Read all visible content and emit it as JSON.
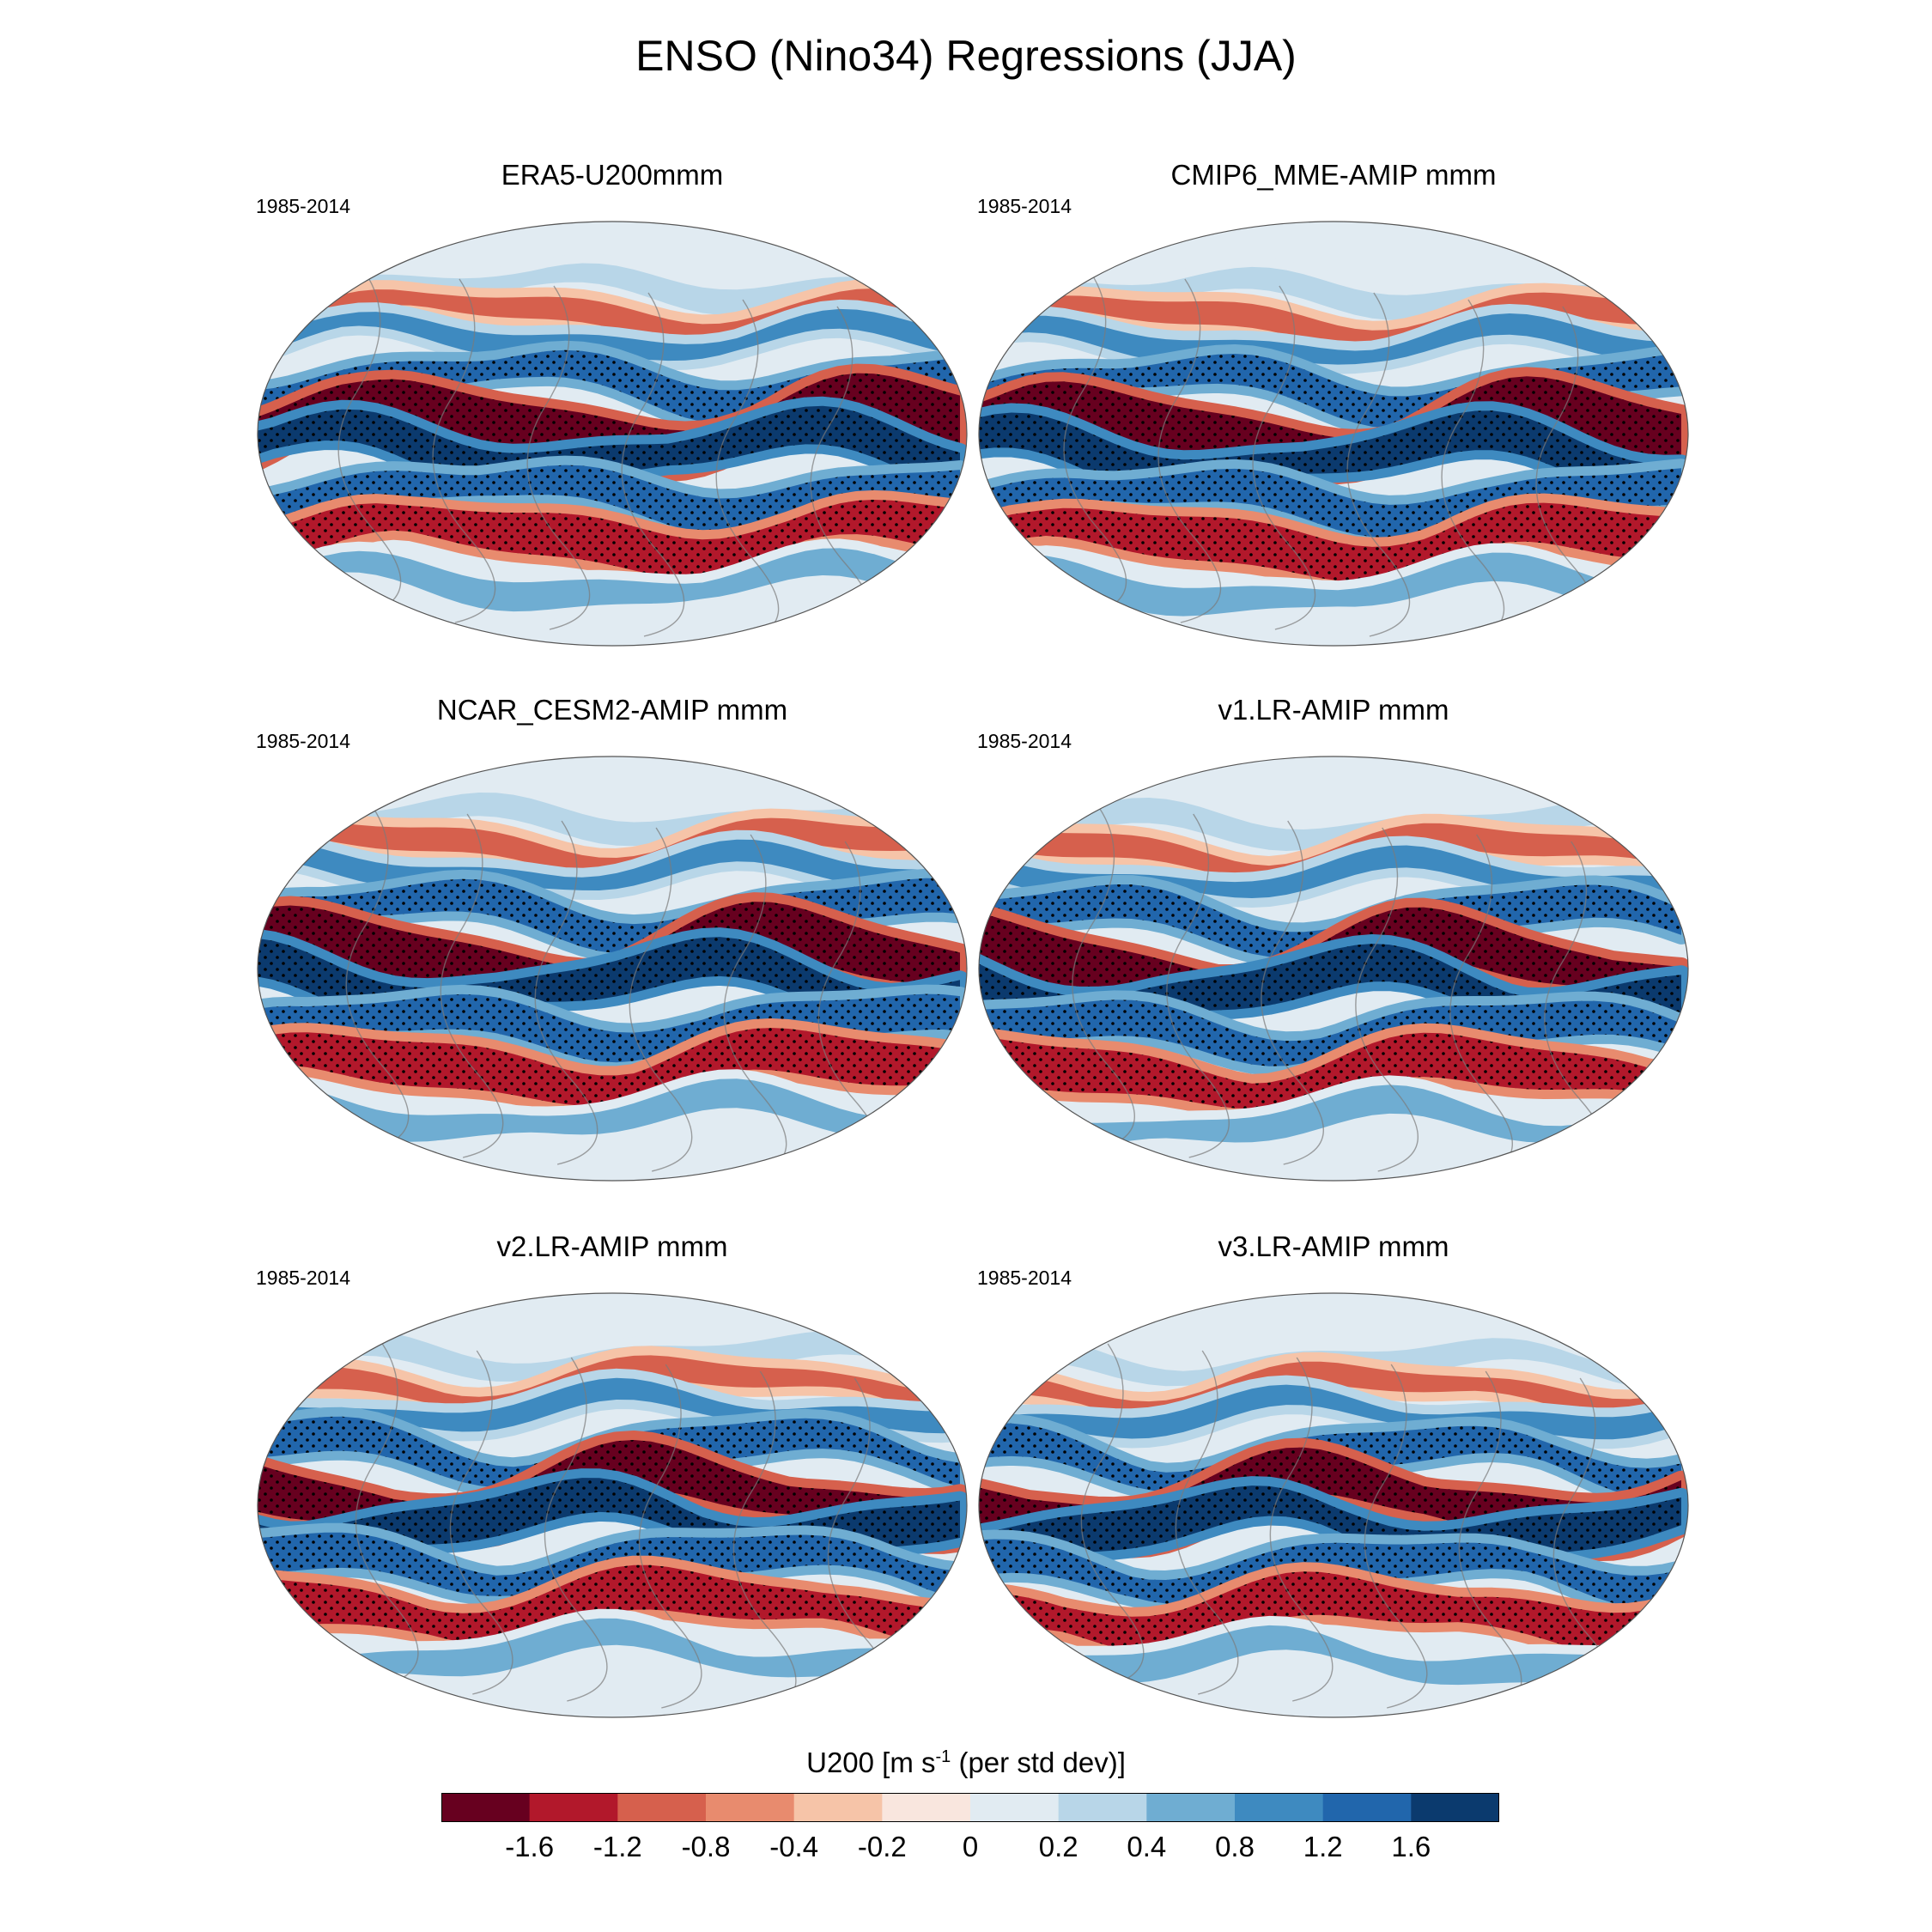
{
  "title": "ENSO (Nino34) Regressions (JJA)",
  "chart_data": {
    "type": "heatmap",
    "variable": "U200",
    "colorbar": {
      "label_main": "U200 [m s",
      "label_sup": "-1",
      "label_tail": " (per std dev)]",
      "ticks": [
        "-1.6",
        "-1.2",
        "-0.8",
        "-0.4",
        "-0.2",
        "0",
        "0.2",
        "0.4",
        "0.8",
        "1.2",
        "1.6"
      ],
      "colors": [
        "#67001f",
        "#b2182b",
        "#d6604d",
        "#e88b6e",
        "#f6c4a8",
        "#f9e6de",
        "#e1ebf2",
        "#b8d6e8",
        "#6fadd2",
        "#3e8ac0",
        "#2166ac",
        "#0b3a6e"
      ]
    },
    "panels": [
      {
        "title": "ERA5-U200mmm",
        "period": "1985-2014"
      },
      {
        "title": "CMIP6_MME-AMIP  mmm",
        "period": "1985-2014"
      },
      {
        "title": "NCAR_CESM2-AMIP  mmm",
        "period": "1985-2014"
      },
      {
        "title": "v1.LR-AMIP  mmm",
        "period": "1985-2014"
      },
      {
        "title": "v2.LR-AMIP  mmm",
        "period": "1985-2014"
      },
      {
        "title": "v3.LR-AMIP  mmm",
        "period": "1985-2014"
      }
    ]
  }
}
